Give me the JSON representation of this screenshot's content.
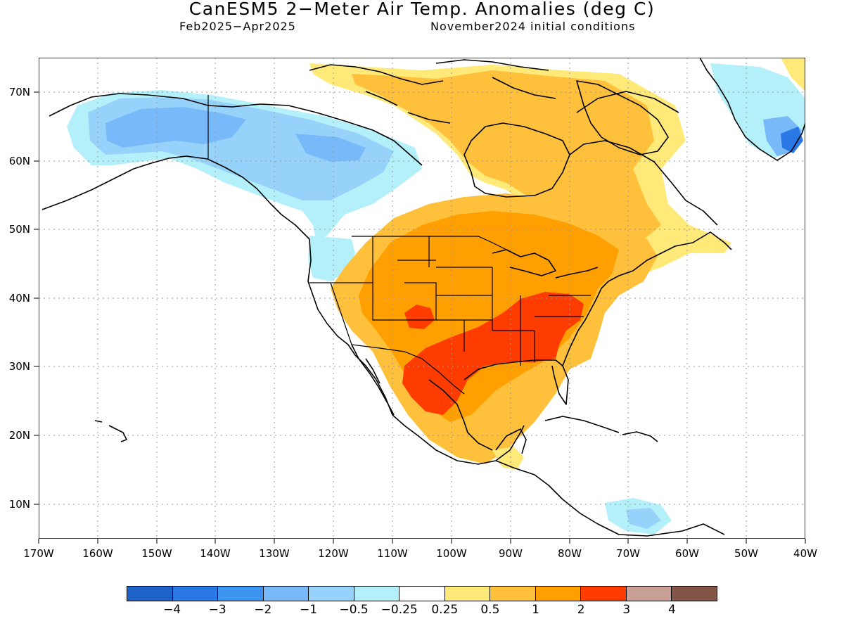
{
  "title": "CanESM5 2−Meter Air Temp. Anomalies (deg C)",
  "period": "Feb2025−Apr2025",
  "initial_conditions": "November2024 initial conditions",
  "lat_labels": [
    "70N",
    "60N",
    "50N",
    "40N",
    "30N",
    "20N",
    "10N"
  ],
  "lon_labels": [
    "170W",
    "160W",
    "150W",
    "140W",
    "130W",
    "120W",
    "110W",
    "100W",
    "90W",
    "80W",
    "70W",
    "60W",
    "50W",
    "40W"
  ],
  "colorbar": {
    "colors": [
      "#1e64c8",
      "#2a78e6",
      "#3c96f0",
      "#78b9fa",
      "#96d2fa",
      "#b4f0fa",
      "#ffffff",
      "#ffe978",
      "#ffc03c",
      "#ffa000",
      "#ff3c00",
      "#c8a096",
      "#825546"
    ],
    "labels": [
      "−4",
      "−3",
      "−2",
      "−1",
      "−0.5",
      "−0.25",
      "0.25",
      "0.5",
      "1",
      "2",
      "3",
      "4"
    ]
  },
  "map_extent": {
    "lon_min": -170,
    "lon_max": -40,
    "lat_min": 5,
    "lat_max": 75
  },
  "anomaly_regions": [
    {
      "region": "Alaska / NW Canada",
      "anomaly_class": "−1"
    },
    {
      "region": "Pacific Northwest",
      "anomaly_class": "−0.25"
    },
    {
      "region": "Greenland",
      "anomaly_class": "−0.5"
    },
    {
      "region": "Central US / Canada",
      "anomaly_class": "1"
    },
    {
      "region": "Southeast US / Texas",
      "anomaly_class": "2"
    },
    {
      "region": "Eastern Arctic Archipelago",
      "anomaly_class": "0.5"
    },
    {
      "region": "Caribbean Sea",
      "anomaly_class": "−1"
    }
  ]
}
